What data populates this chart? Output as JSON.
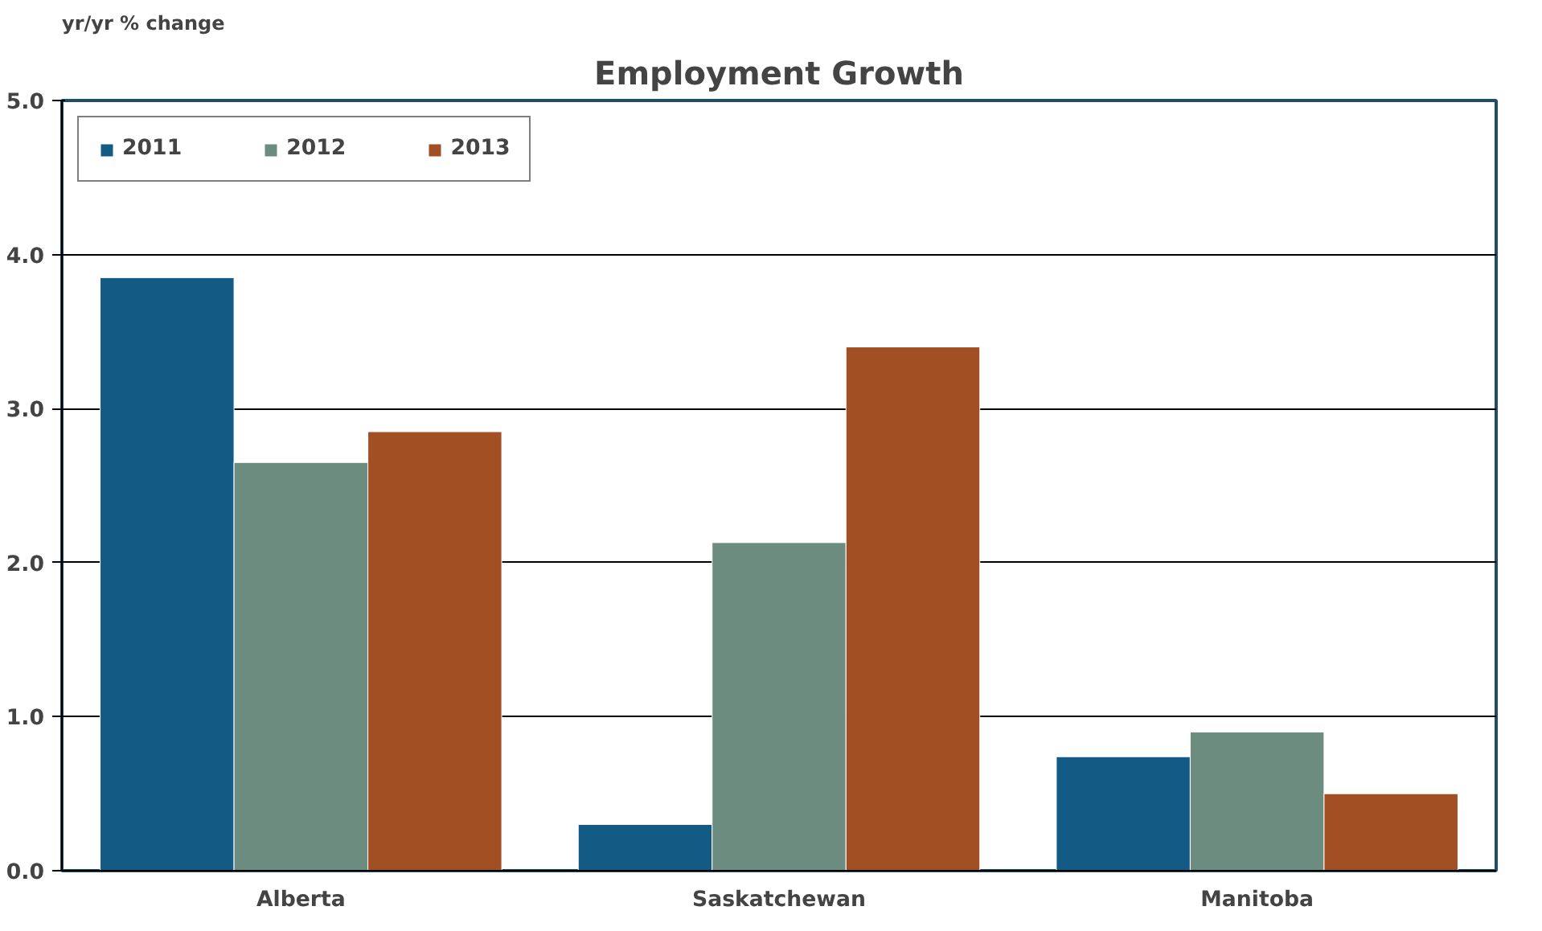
{
  "chart_data": {
    "type": "bar",
    "title": "Employment Growth",
    "ylabel": "yr/yr % change",
    "categories": [
      "Alberta",
      "Saskatchewan",
      "Manitoba"
    ],
    "series": [
      {
        "name": "2011",
        "color": "#135a85",
        "values": [
          3.85,
          0.3,
          0.74
        ]
      },
      {
        "name": "2012",
        "color": "#6b8c7f",
        "values": [
          2.65,
          2.13,
          0.9
        ]
      },
      {
        "name": "2013",
        "color": "#a24f24",
        "values": [
          2.85,
          3.4,
          0.5
        ]
      }
    ],
    "ylim": [
      0,
      5
    ],
    "yticks": [
      {
        "value": 0,
        "label": "0.0"
      },
      {
        "value": 1,
        "label": "1.0"
      },
      {
        "value": 2,
        "label": "2.0"
      },
      {
        "value": 3,
        "label": "3.0"
      },
      {
        "value": 4,
        "label": "4.0"
      },
      {
        "value": 5,
        "label": "5.0"
      }
    ],
    "grid": "y",
    "legend": "top left"
  }
}
